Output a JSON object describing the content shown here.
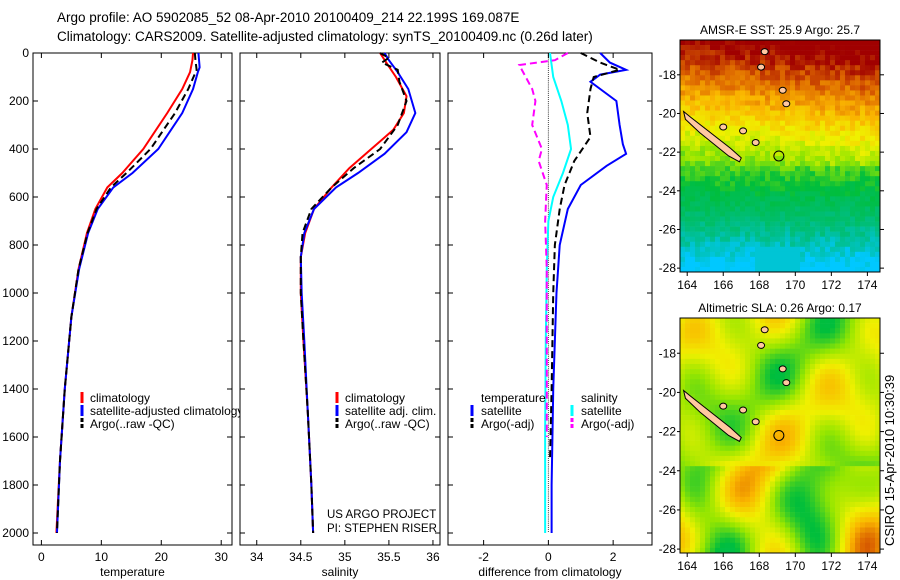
{
  "header": {
    "line1": "Argo profile: AO 5902085_52 08-Apr-2010 20100409_214 22.199S 169.087E",
    "line2": "Climatology: CARS2009. Satellite-adjusted climatology: synTS_20100409.nc (0.26d later)"
  },
  "credit": "CSIRO 15-Apr-2010 10:30:39",
  "project": {
    "line1": "US ARGO PROJECT",
    "line2": "PI: STEPHEN RISER"
  },
  "colors": {
    "red": "#ff0000",
    "blue": "#0000ff",
    "black": "#000000",
    "cyan": "#00ffff",
    "magenta": "#ff00ff"
  },
  "chart_data": [
    {
      "type": "line",
      "xlabel": "temperature",
      "ylabel": "",
      "xlim": [
        -1.4,
        31.8
      ],
      "ylim": [
        0,
        2050
      ],
      "xticks": [
        0,
        10,
        20,
        30
      ],
      "xticklabels": [
        "0",
        "10",
        "20",
        "30"
      ],
      "yticks": [
        0,
        200,
        400,
        600,
        800,
        1000,
        1200,
        1400,
        1600,
        1800,
        2000
      ],
      "yticklabels": [
        "0",
        "200",
        "400",
        "600",
        "800",
        "1000",
        "1200",
        "1400",
        "1600",
        "1800",
        "2000"
      ],
      "legend": [
        "climatology",
        "satellite-adjusted climatology",
        "Argo(..raw -QC)"
      ],
      "series": [
        {
          "name": "climatology",
          "color": "red",
          "dashed": false,
          "depth": [
            0,
            30,
            80,
            150,
            250,
            400,
            500,
            560,
            650,
            750,
            900,
            1100,
            1400,
            1700,
            2000
          ],
          "values": [
            25.3,
            25.2,
            24.8,
            23.5,
            21,
            17,
            13.5,
            11,
            9,
            7.6,
            6.2,
            5,
            3.9,
            3.1,
            2.5
          ]
        },
        {
          "name": "satellite-adjusted climatology",
          "color": "blue",
          "dashed": false,
          "depth": [
            0,
            30,
            60,
            80,
            150,
            250,
            400,
            500,
            560,
            650,
            750,
            900,
            1100,
            1400,
            1700,
            2000
          ],
          "values": [
            26.2,
            26.3,
            26.4,
            26.1,
            25.3,
            23.5,
            19.5,
            15.2,
            12,
            9.4,
            7.8,
            6.3,
            5,
            3.9,
            3.1,
            2.6
          ]
        },
        {
          "name": "Argo(..raw -QC)",
          "color": "black",
          "dashed": true,
          "depth": [
            0,
            30,
            70,
            150,
            250,
            400,
            500,
            560,
            650,
            750,
            900,
            1100,
            1400,
            1700,
            2000
          ],
          "values": [
            25.6,
            25.7,
            25.9,
            24.5,
            22.3,
            18.2,
            14.2,
            11.6,
            9.2,
            7.7,
            6.2,
            5,
            3.9,
            3.1,
            2.6
          ]
        }
      ]
    },
    {
      "type": "line",
      "xlabel": "salinity",
      "xlim": [
        33.81,
        36.08
      ],
      "ylim": [
        0,
        2050
      ],
      "xticks": [
        34,
        34.5,
        35,
        35.5,
        36
      ],
      "xticklabels": [
        "34",
        "34.5",
        "35",
        "35.5",
        "36"
      ],
      "legend": [
        "climatology",
        "satellite adj. clim.",
        "Argo(..raw -QC)"
      ],
      "series": [
        {
          "name": "climatology",
          "color": "red",
          "dashed": false,
          "depth": [
            0,
            40,
            100,
            180,
            250,
            320,
            400,
            480,
            560,
            650,
            750,
            850,
            1000,
            1200,
            1500,
            1800,
            2000
          ],
          "values": [
            35.4,
            35.47,
            35.58,
            35.7,
            35.67,
            35.55,
            35.3,
            35.05,
            34.85,
            34.65,
            34.55,
            34.5,
            34.5,
            34.53,
            34.58,
            34.62,
            34.64
          ]
        },
        {
          "name": "satellite adj. clim.",
          "color": "blue",
          "dashed": false,
          "depth": [
            0,
            30,
            80,
            150,
            250,
            330,
            420,
            500,
            560,
            650,
            750,
            850,
            1000,
            1200,
            1500,
            1800,
            2000
          ],
          "values": [
            35.45,
            35.5,
            35.6,
            35.72,
            35.8,
            35.7,
            35.45,
            35.15,
            34.9,
            34.65,
            34.54,
            34.5,
            34.51,
            34.54,
            34.58,
            34.62,
            34.64
          ]
        },
        {
          "name": "Argo(..raw -QC)",
          "color": "black",
          "dashed": true,
          "depth": [
            0,
            20,
            40,
            70,
            120,
            200,
            300,
            400,
            480,
            560,
            650,
            750,
            850,
            1000,
            1200,
            1500,
            1800,
            2000
          ],
          "values": [
            35.4,
            35.5,
            35.42,
            35.6,
            35.62,
            35.7,
            35.6,
            35.4,
            35.1,
            34.85,
            34.62,
            34.52,
            34.5,
            34.5,
            34.53,
            34.58,
            34.62,
            34.64
          ]
        }
      ]
    },
    {
      "type": "line",
      "xlabel": "difference from climatology",
      "xlim": [
        -3.1,
        3.2
      ],
      "ylim": [
        0,
        2050
      ],
      "xticks": [
        -2,
        0,
        2
      ],
      "xticklabels": [
        "-2",
        "0",
        "2"
      ],
      "legend_headers": [
        "temperature",
        "salinity"
      ],
      "legend": [
        "satellite",
        "Argo(-adj)",
        "satellite",
        "Argo(-adj)"
      ],
      "series": [
        {
          "name": "temperature satellite",
          "color": "blue",
          "dashed": false,
          "depth": [
            0,
            40,
            70,
            90,
            120,
            200,
            300,
            380,
            420,
            470,
            550,
            650,
            800,
            1000,
            1400,
            1800,
            2000
          ],
          "values": [
            1.6,
            1.9,
            2.4,
            1.6,
            1.3,
            2.1,
            2.2,
            2.3,
            2.4,
            1.8,
            1.0,
            0.6,
            0.35,
            0.25,
            0.15,
            0.1,
            0.1
          ]
        },
        {
          "name": "temperature Argo(-adj)",
          "color": "black",
          "dashed": true,
          "depth": [
            0,
            40,
            70,
            100,
            150,
            250,
            350,
            450,
            550,
            650,
            800,
            1000,
            1400,
            1700
          ],
          "values": [
            1.0,
            1.6,
            2.2,
            1.4,
            1.3,
            1.2,
            1.3,
            0.8,
            0.5,
            0.35,
            0.2,
            0.15,
            0.1,
            0.05
          ]
        },
        {
          "name": "salinity satellite",
          "color": "cyan",
          "dashed": false,
          "depth": [
            0,
            50,
            100,
            200,
            300,
            400,
            500,
            600,
            700,
            900,
            1200,
            1600,
            2000
          ],
          "values": [
            0.05,
            0.1,
            0.15,
            0.4,
            0.6,
            0.7,
            0.45,
            0.15,
            0.0,
            -0.05,
            -0.08,
            -0.1,
            -0.1
          ]
        },
        {
          "name": "salinity Argo(-adj)",
          "color": "magenta",
          "dashed": true,
          "depth": [
            0,
            30,
            50,
            100,
            150,
            200,
            300,
            400,
            450,
            550,
            700,
            900,
            1200,
            1600
          ],
          "values": [
            0.6,
            0.2,
            -0.9,
            -0.7,
            -0.5,
            -0.4,
            -0.5,
            -0.2,
            -0.3,
            -0.05,
            -0.1,
            -0.05,
            -0.05,
            -0.05
          ]
        }
      ]
    },
    {
      "type": "heatmap",
      "title": "AMSR-E SST: 25.9 Argo: 25.7",
      "xlim": [
        163.6,
        174.7
      ],
      "ylim": [
        -28.2,
        -16.2
      ],
      "xticklabels": [
        "164",
        "166",
        "168",
        "170",
        "172",
        "174"
      ],
      "yticklabels": [
        "-18",
        "-20",
        "-22",
        "-24",
        "-26",
        "-28"
      ],
      "profile_lon": 169.087,
      "profile_lat": -22.199
    },
    {
      "type": "heatmap",
      "title": "Altimetric SLA: 0.26 Argo: 0.17",
      "xlim": [
        163.6,
        174.7
      ],
      "ylim": [
        -28.2,
        -16.2
      ],
      "xticklabels": [
        "164",
        "166",
        "168",
        "170",
        "172",
        "174"
      ],
      "yticklabels": [
        "-18",
        "-20",
        "-22",
        "-24",
        "-26",
        "-28"
      ],
      "profile_lon": 169.087,
      "profile_lat": -22.199
    }
  ]
}
